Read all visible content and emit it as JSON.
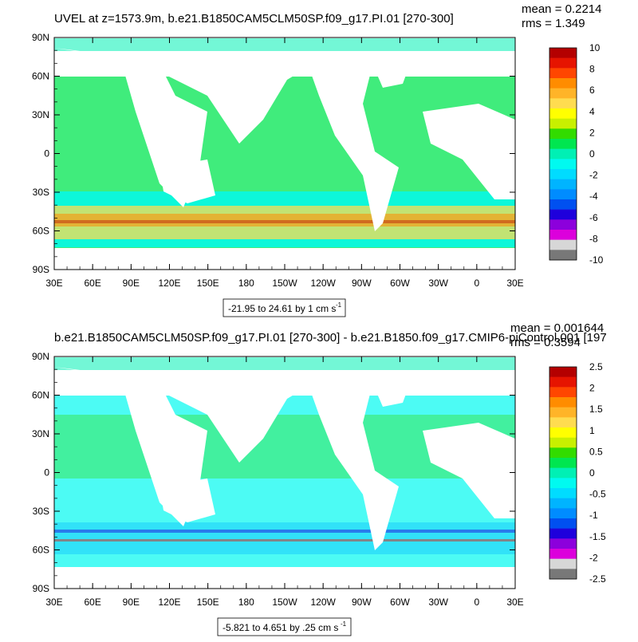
{
  "chart_data": [
    {
      "type": "heatmap",
      "title": "UVEL at z=1573.9m, b.e21.B1850CAM5CLM50SP.f09_g17.PI.01 [270-300]",
      "stats": {
        "mean": "mean = 0.2214",
        "rms": "rms = 1.349"
      },
      "x_ticks": [
        "30E",
        "60E",
        "90E",
        "120E",
        "150E",
        "180",
        "150W",
        "120W",
        "90W",
        "60W",
        "30W",
        "0",
        "30E"
      ],
      "y_ticks": [
        "90N",
        "60N",
        "30N",
        "0",
        "30S",
        "60S",
        "90S"
      ],
      "xlim": [
        30,
        390
      ],
      "ylim": [
        -90,
        90
      ],
      "range_label": "-21.95 to 24.61 by 1 cm s",
      "range_unit_exp": "-1",
      "colorbar": {
        "labels": [
          "10",
          "8",
          "6",
          "4",
          "2",
          "0",
          "-2",
          "-4",
          "-6",
          "-8",
          "-10"
        ],
        "colors": [
          "#b40000",
          "#e61400",
          "#ff4600",
          "#ff8c00",
          "#ffb428",
          "#ffdc50",
          "#ffff00",
          "#c8f000",
          "#32dc00",
          "#00e650",
          "#00f0b4",
          "#00faf0",
          "#00dcff",
          "#00b4ff",
          "#008cff",
          "#0050f0",
          "#1e00dc",
          "#8c00dc",
          "#dc00dc",
          "#d7d7d7",
          "#787878"
        ]
      }
    },
    {
      "type": "heatmap",
      "title": "b.e21.B1850CAM5CLM50SP.f09_g17.PI.01 [270-300] - b.e21.B1850.f09_g17.CMIP6-piControl.001 [197",
      "stats": {
        "mean": "mean = 0.001644",
        "rms": "rms = 0.3594"
      },
      "x_ticks": [
        "30E",
        "60E",
        "90E",
        "120E",
        "150E",
        "180",
        "150W",
        "120W",
        "90W",
        "60W",
        "30W",
        "0",
        "30E"
      ],
      "y_ticks": [
        "90N",
        "60N",
        "30N",
        "0",
        "30S",
        "60S",
        "90S"
      ],
      "xlim": [
        30,
        390
      ],
      "ylim": [
        -90,
        90
      ],
      "range_label": "-5.821 to 4.651 by .25 cm s",
      "range_unit_exp": "-1",
      "colorbar": {
        "labels": [
          "2.5",
          "2",
          "1.5",
          "1",
          "0.5",
          "0",
          "-0.5",
          "-1",
          "-1.5",
          "-2",
          "-2.5"
        ],
        "colors": [
          "#b40000",
          "#e61400",
          "#ff4600",
          "#ff8c00",
          "#ffb428",
          "#ffdc50",
          "#ffff00",
          "#c8f000",
          "#32dc00",
          "#00e650",
          "#00f0b4",
          "#00faf0",
          "#00dcff",
          "#00b4ff",
          "#008cff",
          "#0050f0",
          "#1e00dc",
          "#8c00dc",
          "#dc00dc",
          "#d7d7d7",
          "#787878"
        ]
      }
    }
  ]
}
